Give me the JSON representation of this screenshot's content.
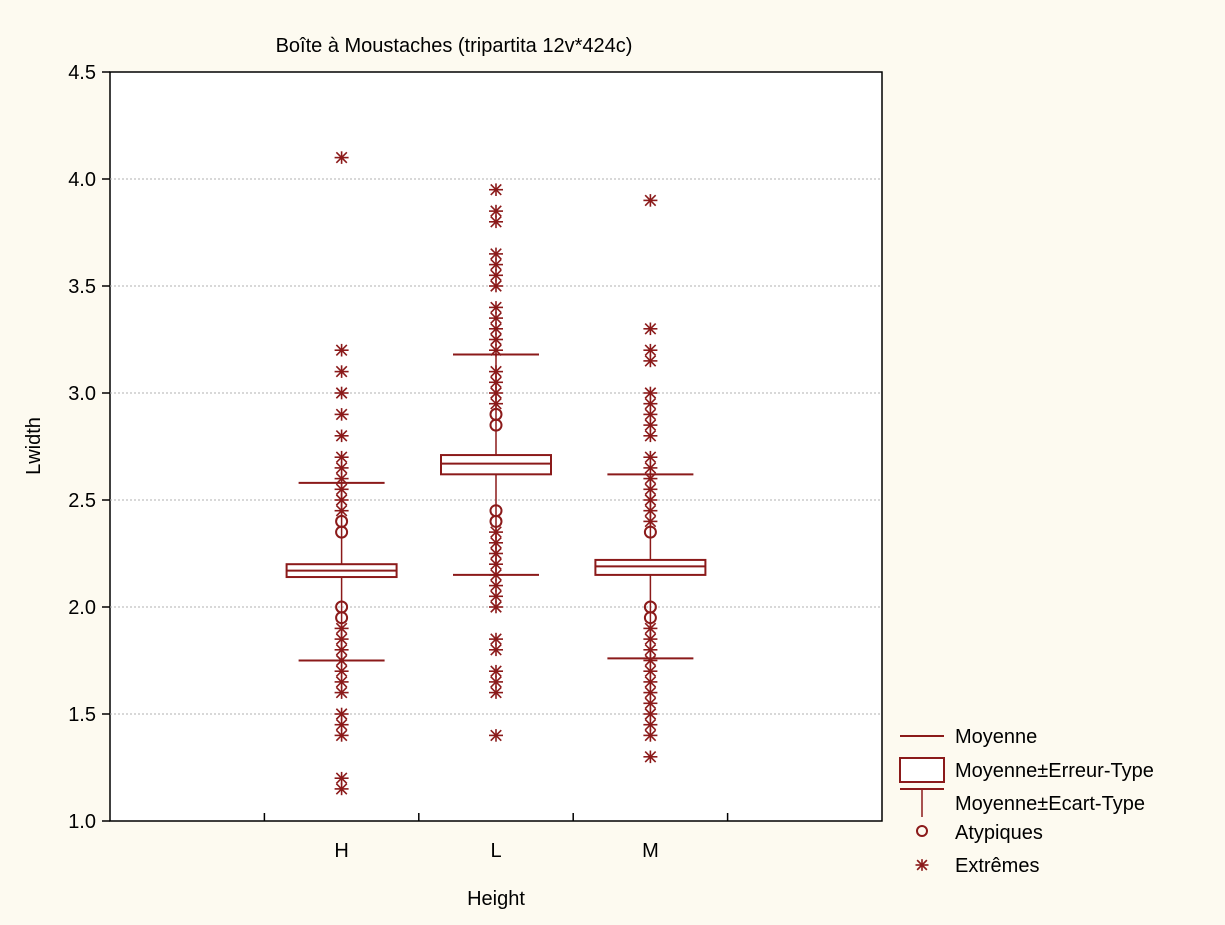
{
  "chart_data": {
    "type": "boxplot",
    "title": "Boîte à Moustaches (tripartita 12v*424c)",
    "xlabel": "Height",
    "ylabel": "Lwidth",
    "ylim": [
      1.0,
      4.5
    ],
    "yticks": [
      "1.0",
      "1.5",
      "2.0",
      "2.5",
      "3.0",
      "3.5",
      "4.0",
      "4.5"
    ],
    "grid": true,
    "legend_position": "bottom-right",
    "categories": [
      "H",
      "L",
      "M"
    ],
    "series": [
      {
        "category": "H",
        "mean": 2.17,
        "se_low": 2.14,
        "se_high": 2.2,
        "sd_low": 1.75,
        "sd_high": 2.58,
        "outliers": [
          1.95,
          2.0,
          2.35,
          2.4
        ],
        "extremes": [
          1.15,
          1.2,
          1.4,
          1.45,
          1.5,
          1.6,
          1.65,
          1.7,
          1.75,
          1.8,
          1.85,
          1.9,
          2.45,
          2.5,
          2.55,
          2.6,
          2.65,
          2.7,
          2.8,
          2.9,
          3.0,
          3.1,
          3.2,
          4.1
        ]
      },
      {
        "category": "L",
        "mean": 2.67,
        "se_low": 2.62,
        "se_high": 2.71,
        "sd_low": 2.15,
        "sd_high": 3.18,
        "outliers": [
          2.4,
          2.45,
          2.85,
          2.9
        ],
        "extremes": [
          1.4,
          1.6,
          1.65,
          1.7,
          1.8,
          1.85,
          2.0,
          2.05,
          2.1,
          2.15,
          2.2,
          2.25,
          2.3,
          2.35,
          2.95,
          3.0,
          3.05,
          3.1,
          3.2,
          3.25,
          3.3,
          3.35,
          3.4,
          3.5,
          3.55,
          3.6,
          3.65,
          3.8,
          3.85,
          3.95
        ]
      },
      {
        "category": "M",
        "mean": 2.19,
        "se_low": 2.15,
        "se_high": 2.22,
        "sd_low": 1.76,
        "sd_high": 2.62,
        "outliers": [
          1.95,
          2.0,
          2.35
        ],
        "extremes": [
          1.3,
          1.4,
          1.45,
          1.5,
          1.55,
          1.6,
          1.65,
          1.7,
          1.75,
          1.8,
          1.85,
          1.9,
          2.4,
          2.45,
          2.5,
          2.55,
          2.6,
          2.65,
          2.7,
          2.8,
          2.85,
          2.9,
          2.95,
          3.0,
          3.15,
          3.2,
          3.3,
          3.9
        ]
      }
    ],
    "legend": {
      "mean": "Moyenne",
      "se": "Moyenne±Erreur-Type",
      "sd": "Moyenne±Ecart-Type",
      "outliers": "Atypiques",
      "extremes": "Extrêmes"
    },
    "colors": {
      "marks": "#8b1a1a",
      "grid": "#b0b0b0",
      "background": "#fdfaf0",
      "plot_background": "#ffffff"
    }
  }
}
